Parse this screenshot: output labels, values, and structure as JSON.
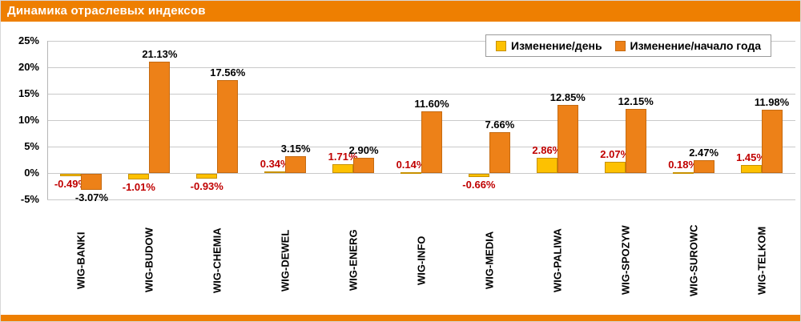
{
  "header": {
    "title": "Динамика отраслевых индексов"
  },
  "accent_color": "#EE7F01",
  "chart_data": {
    "type": "bar",
    "title": "Динамика отраслевых индексов",
    "categories": [
      "WIG-BANKI",
      "WIG-BUDOW",
      "WIG-CHEMIA",
      "WIG-DEWEL",
      "WIG-ENERG",
      "WIG-INFO",
      "WIG-MEDIA",
      "WIG-PALIWA",
      "WIG-SPOZYW",
      "WIG-SUROWC",
      "WIG-TELKOM"
    ],
    "series": [
      {
        "name": "Изменение/день",
        "color": "#FDC101",
        "border_color": "#C79100",
        "label_color": "#C00000",
        "values": [
          -0.49,
          -1.01,
          -0.93,
          0.34,
          1.71,
          0.14,
          -0.66,
          2.86,
          2.07,
          0.18,
          1.45
        ],
        "labels": [
          "-0.49%",
          "-1.01%",
          "-0.93%",
          "0.34%",
          "1.71%",
          "0.14%",
          "-0.66%",
          "2.86%",
          "2.07%",
          "0.18%",
          "1.45%"
        ]
      },
      {
        "name": "Изменение/начало года",
        "color": "#ED8118",
        "border_color": "#C56A11",
        "label_color": "#000000",
        "values": [
          -3.07,
          21.13,
          17.56,
          3.15,
          2.9,
          11.6,
          7.66,
          12.85,
          12.15,
          2.47,
          11.98
        ],
        "labels": [
          "-3.07%",
          "21.13%",
          "17.56%",
          "3.15%",
          "2.90%",
          "11.60%",
          "7.66%",
          "12.85%",
          "12.15%",
          "2.47%",
          "11.98%"
        ]
      }
    ],
    "ylim": [
      -5,
      25
    ],
    "y_ticks": [
      {
        "label": "25%",
        "value": 25
      },
      {
        "label": "20%",
        "value": 20
      },
      {
        "label": "15%",
        "value": 15
      },
      {
        "label": "10%",
        "value": 10
      },
      {
        "label": "5%",
        "value": 5
      },
      {
        "label": "0%",
        "value": 0
      },
      {
        "label": "-5%",
        "value": -5
      }
    ],
    "grid": true,
    "legend_position": "top-right"
  }
}
